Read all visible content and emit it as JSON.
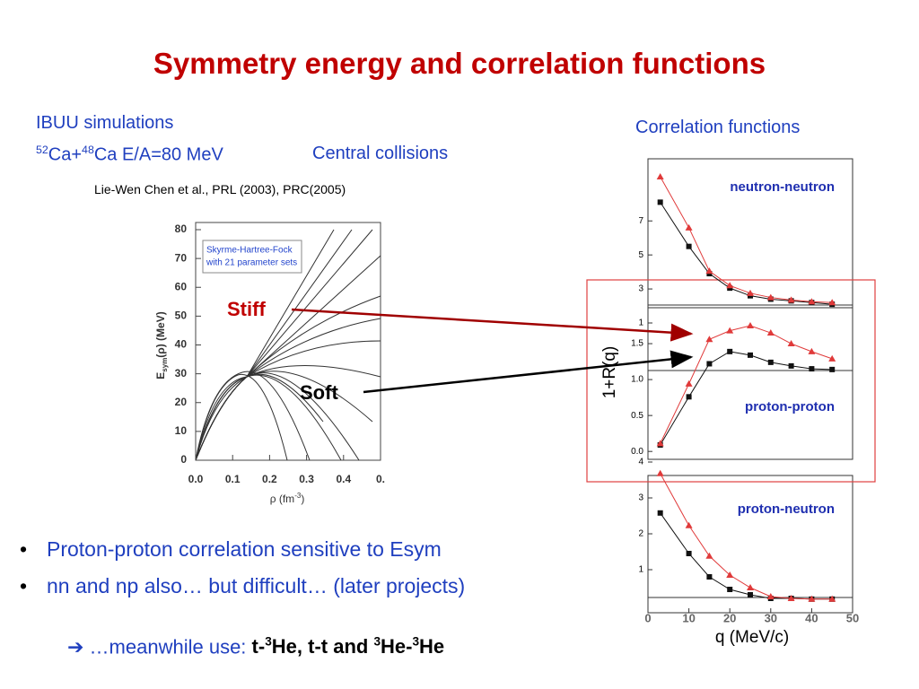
{
  "title": "Symmetry energy and correlation functions",
  "sim": {
    "line1": "IBUU simulations",
    "a_mass": "52",
    "a": "Ca+",
    "b_mass": "48",
    "b": "Ca E/A=80 MeV",
    "centrality": "Central collisions"
  },
  "reference": "Lie-Wen Chen et al., PRL (2003), PRC(2005)",
  "bullets": [
    "Proton-proton correlation sensitive to Esym",
    "nn and np also… but difficult… (later projects)"
  ],
  "footer": {
    "arrow": "➔",
    "lead": " …meanwhile use: ",
    "bold_parts": [
      "t-",
      "3",
      "He, t-t and ",
      "3",
      "He-",
      "3",
      "He"
    ]
  },
  "esym_plot": {
    "legend": [
      "Skyrme-Hartree-Fock",
      "with 21 parameter sets"
    ],
    "ylabel_main": "E",
    "ylabel_sub": "sym",
    "ylabel_rest": "(ρ) (MeV)",
    "xlabel": "ρ (fm",
    "xlabel_sup": "-3",
    "xlabel_end": ")",
    "xlim": [
      0,
      0.5
    ],
    "xticks": [
      {
        "value": 0,
        "label": "0.0"
      },
      0.1,
      0.2,
      0.3,
      0.4,
      {
        "value": 0.5,
        "label": "0."
      }
    ],
    "ylim": [
      0,
      80
    ],
    "yticks": [
      0,
      10,
      20,
      30,
      40,
      50,
      60,
      70,
      80
    ],
    "stiff_label": "Stiff",
    "soft_label": "Soft"
  },
  "correlation": {
    "title": "Correlation functions",
    "xlabel": "q (MeV/c)",
    "ylabel": "1+R(q)",
    "x": [
      3,
      10,
      15,
      20,
      25,
      30,
      35,
      40,
      45
    ],
    "xlim": [
      0,
      50
    ],
    "xticks": [
      0,
      10,
      20,
      30,
      40,
      50
    ],
    "panels": [
      {
        "label": "neutron-neutron",
        "ylim": [
          1,
          10.6
        ],
        "yticks": [
          1,
          3,
          5,
          7
        ],
        "series": [
          {
            "color": "#111111",
            "values": [
              8.1,
              5.5,
              3.9,
              3.05,
              2.6,
              2.4,
              2.3,
              2.2,
              2.1
            ]
          },
          {
            "color": "#e03a3a",
            "values": [
              9.6,
              6.6,
              4.05,
              3.2,
              2.75,
              2.5,
              2.35,
              2.25,
              2.2
            ]
          }
        ]
      },
      {
        "label": "proton-proton",
        "ylim": [
          -0.11,
          2.0
        ],
        "yticks": [
          {
            "value": 0,
            "label": "0.0"
          },
          0.5,
          {
            "value": 1,
            "label": "1.0"
          },
          1.5
        ],
        "series": [
          {
            "color": "#111111",
            "values": [
              0.09,
              0.76,
              1.22,
              1.39,
              1.34,
              1.24,
              1.19,
              1.15,
              1.14
            ]
          },
          {
            "color": "#e03a3a",
            "values": [
              0.11,
              0.94,
              1.56,
              1.68,
              1.75,
              1.65,
              1.5,
              1.39,
              1.29
            ]
          }
        ]
      },
      {
        "label": "proton-neutron",
        "ylim": [
          -0.1,
          4.1
        ],
        "yticks": [
          1,
          2,
          3,
          4
        ],
        "series": [
          {
            "color": "#111111",
            "values": [
              2.58,
              1.45,
              0.8,
              0.45,
              0.3,
              0.2,
              0.2,
              0.18,
              0.18
            ]
          },
          {
            "color": "#e03a3a",
            "values": [
              3.68,
              2.23,
              1.38,
              0.85,
              0.5,
              0.25,
              0.2,
              0.18,
              0.18
            ]
          }
        ]
      }
    ]
  }
}
